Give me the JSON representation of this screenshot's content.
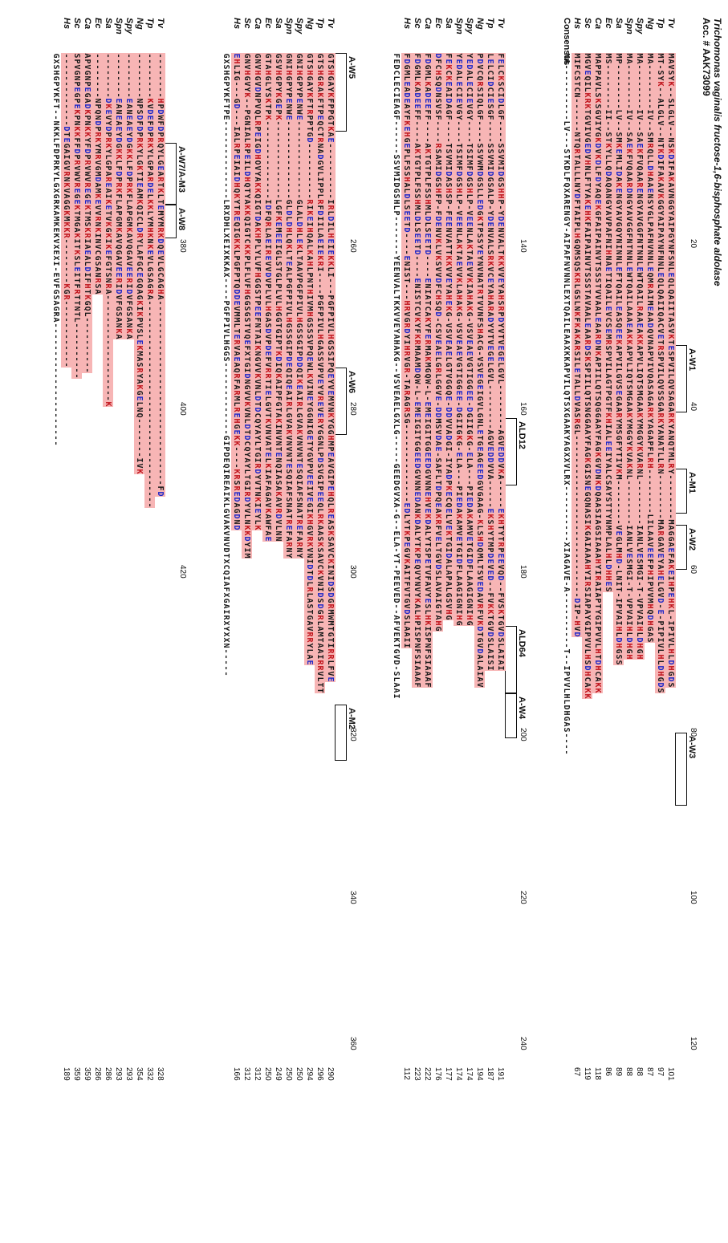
{
  "title": "Trichomonas vaginalis fructose-1,6-bisphosphate aldolase",
  "accession": "Acc. # AAK73099",
  "species": [
    "Tv",
    "Tp",
    "Ng",
    "Spy",
    "Spn",
    "Sa",
    "Ec",
    "Ca",
    "Sc",
    "Hs"
  ],
  "consensus_label": "Consensus",
  "blocks": [
    {
      "rows": [
        {
          "seq": "MAVSYK--S LGLV--NSK DIFAKAVNGG YAIPGYNFS NLEQLQAIIT ASVKTESPVI LQVSAGARKY ANQTMLRY--------MAGGAE FAKEIHPEHK L-IPIVLHLDHGDS",
          "end": "101"
        },
        {
          "seq": "MT-SYK--A LGLV--NTK DIFAKAVKGG YAIPAYNFN NLEQLQAIIQ ACVETRSPVI LQVSSGARKY ANATLLRN--------MARGAVE YAHELGVD-E-P IPIVLHLDHGDS",
          "end": "97"
        },
        {
          "seq": "MA------- -IV--SMR QLLDHAAENS YGLPAFNVN NLEQMRAIME AADQVNAPVI VQASAGARKY AGAPFLRH--------LILAAVE EFPHIPVVMHQDHGAS",
          "end": "87"
        },
        {
          "seq": "MA------- -IV--SAE KFVQAARENG YAVGGFNTN NLEWTQAILR AAEAKKAPVL IQTSMGAAKY MGGYKVARNL--------IANLVE SMGI-T-VPVAIHLDHGH",
          "end": "88"
        },
        {
          "seq": "MA------- -IV--SAE KFVQAARDNG YAVGGFNTN NLEWTQAILA AAEAKKAPVL IQTSMGAAKY MGGYKVAKNL--------IANLVE SMGI-T-VPVAIHLDHGH",
          "end": "88"
        },
        {
          "seq": "MP------- -LV--SMK EMLIDAKENG YAVGQYNIN NLEFTQAILE ASQEEKAPVI LGVSEGAARY MSGFYTIVKM--------VEGLMH D-LNIT-IPVAIHLDHGSS",
          "end": "89"
        },
        {
          "seq": "MS------- -II--STK YLLQDAQANG YAVPAFNIH NAETIQAILE VCSEMRSPVI LAGTPGTFKH IALEEIYALC SAYSTT YNMPLALHLDHHES",
          "end": "86"
        },
        {
          "seq": "MAPPAVLSK SGVIYGKDVK DLFDYAQEKG FAIPAINVT SSSTVVAALE AARDNKAPII LQTSQGGAAY FAGKGVDNKD QAASIAGSIA AAHYIRAIAP TYGIPVVLHTDHCAKK",
          "end": "118"
        },
        {
          "seq": "MGVEQILKRK TGVIVGEDVH NLFTYAKEHK FAIPAINVT SSSTAVAALE AARDSKSPII LQTSNGGAAY FAGKGISNEG QNASIKGAIA AAHYIRSIAP AYGIPVVLHSDHCAKK",
          "end": "119"
        },
        {
          "seq": "MIFCSTCN------NTQ RTALLLNYD FTAIPLHGQM SQSKRLGSLN KFKAKARSIL ETALLDVASRGL-----------------------------DIP-HV D",
          "end": "67"
        }
      ],
      "consensus": "MA-------- --LV---STK DLFQXARENG Y-AIPAFNVN NLEXTQAILE AAXKKAPVI LQTSXGAAKY AGXXVLRX----------XIAGAVE -A---------- T--IPVVLHLDHGAS----",
      "ticks": [
        {
          "at": 20,
          "label": "20"
        },
        {
          "at": 40,
          "label": "40"
        },
        {
          "at": 60,
          "label": "60"
        },
        {
          "at": 80,
          "label": "80"
        },
        {
          "at": 100,
          "label": "100"
        },
        {
          "at": 120,
          "label": "120"
        }
      ],
      "motifs": [
        {
          "label": "A-W1",
          "from": 52,
          "to": 64,
          "rows": [
            0,
            0
          ]
        },
        {
          "label": "A-M1",
          "from": 74,
          "to": 82,
          "rows": [
            0,
            0
          ]
        },
        {
          "label": "A-W2",
          "from": 84,
          "to": 92,
          "rows": [
            0,
            0
          ]
        },
        {
          "label": "A-W3",
          "from": 121,
          "to": 134,
          "rows": [
            0,
            0
          ]
        }
      ]
    },
    {
      "rows": [
        {
          "seq": "FELCKSCIDL GF----SSVMIDGSHH P-YDENVALTKKVV EYAHSRPDYV TVEGELGVL- -------AGVE DDVKA-----E KHTYTRPEEV QD--FVSKT GVDSLAIAI",
          "end": "191"
        },
        {
          "seq": "LELCIDCIES GF----SSVMIDGSAL P-YDENVALSRKVC EYAHARADYV TVEGELGVL- -------AGVE DDVVA-----E KSHYTMPDEV ED--FVKKT GVDSLAISI",
          "end": "187"
        },
        {
          "seq": "PDVCQRSIQL GF----SSVWMDGSLL EDGKTPSSYE YNVNATRTVV NFSHACG-VS VEGEIGVLGN LETGEAGEED GVGAAG-KLS HDQMLTSVED AVRFVKDTGV DALAIAV",
          "end": "194"
        },
        {
          "seq": "YEDALECIEV GY----TSIMFDGSHL P-VEENLAKTAEVV KIAHAKG-VS VEAEVGTIGG EE-DGIIGKG-ELA---PIEDA KAMVETGIDF LAAGIGNIHG",
          "end": "174"
        },
        {
          "seq": "YEDALECIEV GY----TSIMFDGSHL P-VEENLAKTAEVV KLAHAKG-VS VEAEVGTIGG EE-DGIIGKG-ELA---PIEDA KAMVETGIDF LAAGIGNIHG",
          "end": "174"
        },
        {
          "seq": "FEKCKEAIDA GF----TSVMIDASHS P-FEENVATTKKVV EYAHEKG-VS VEAELGTVGG QE-DDVVADGI-IYADPKECQE LVEKTGIDAL APALGSVHG",
          "end": "177"
        },
        {
          "seq": "DFCHSQDNSV SF----RSAMIDGSHF P-FDENVKLVKSVV DFCHSQD-CS VEAELGRLGG VE-DDMSVDAE-SAFLTDPQEA KRFVELTGVD SLAVAIGTAHG",
          "end": "176"
        },
        {
          "seq": "FDGMLKADEE FF----AKTGTPLF SSHMLDLSEE TD----ENIATCAKYF ERMAKMGQW-L-EMEIGITG GEEDGVNNEHVEK DALYTSPETV FAVYESLHKI SPNFSIAAAF",
          "end": "222"
        },
        {
          "seq": "FDGMLKADEE FF----AKTGTPLF SSHMLDLSEE TD----ENISTCVKYF KRMAAMDQW-L-EMEIGITG GEEDGVNNEDANK DALYTKPEQV YNVYKALHPI SPNFSIAAAF",
          "end": "223"
        },
        {
          "seq": "FDGMLEADEA YFKEHGEPLF SSHALDLSEE TD----ENIST---HRVGR DYIHRVGR-TARAGRSG -------------- EDLYTKPEGV KAITFVT GVDSLAAII",
          "end": "112"
        }
      ],
      "consensus": "FEDCLECIEA GF------SSVMIDGSHL P-------YE ENVALTKKVV EYAHAKG--V SVEAELGXLG -----GEE DGVXA-G--E LA-YT-PEEV ED--AFVEKT GVD-SLAAI",
      "ticks": [
        {
          "at": 140,
          "label": "140"
        },
        {
          "at": 160,
          "label": "160"
        },
        {
          "at": 180,
          "label": "180"
        },
        {
          "at": 200,
          "label": "200"
        },
        {
          "at": 220,
          "label": "220"
        },
        {
          "at": 240,
          "label": "240"
        }
      ],
      "motifs": [
        {
          "label": "ALD12",
          "from": 65,
          "to": 77,
          "rows": [
            0,
            0
          ]
        },
        {
          "label": "ALD64",
          "from": 102,
          "to": 114,
          "rows": [
            0,
            0
          ]
        },
        {
          "label": "A-W4",
          "from": 114,
          "to": 122,
          "rows": [
            0,
            0
          ]
        }
      ]
    },
    {
      "rows": [
        {
          "seq": "GTSHGAYKFP PGTKAE---- ------IRLD ILHEIEKKLI ---PGFPIV LHGSSIPQEY VEMVNKYGGH MPEAVGIPEH QLREASKSAV CKINIDSDGR MWMTGTIRRL FVE",
          "end": "290"
        },
        {
          "seq": "GTSHGRAKFT PEQCTRNADG VLIPPLRFDI ILAEIEKRI- ---PGFPIV LHGASSVPVE YVREVERYGG NLPDSVGIPE EQLRKAASKS AVCKVNIDSD GRLAMTAAIR RVLTT",
          "end": "296"
        },
        {
          "seq": "GTSHGAYKFT RPPTGD---- ------RIKE IHQALKAHLP NTHIVMHGSS SVPQEWLKVI NEYGGNIGET YGVPVEEIVE GIKHGVRKVN IDTDLRLASTGAVRR YLAE",
          "end": "294"
        },
        {
          "seq": "GNIHGPYPEN WE-------- ------GLAL DHLEKLTAAV PGFPIVLHGS SGIPDDQIKE AIRLGVAKVN VNTESQIAFS NATREFARNY",
          "end": "250"
        },
        {
          "seq": "GNIHGPYPEN WE-------- ------GLDL DHLQKLTEAL PGFPIVLHGS SGIPDEQIQE AIRLGVAKVN VNTESQIAFS NATREFARNY",
          "end": "250"
        },
        {
          "seq": "GSVHGPYKGE PK-------- ------LGFK EMEEIGLSTG LPLVLHGGTG IPTKDIQKAI PFGTAKINVN TENQIASAKA VRDVLNN",
          "end": "249"
        },
        {
          "seq": "GTAHGLYSKT PK-------- ------IDFQ RLAEIREVVD VPLVLHGASD VPDEFVRRTI ELGVTKVNVA TELKIAFAGA VKAWFAE",
          "end": "250"
        },
        {
          "seq": "GNVHGVDNPV QLRPEIGDHO VYAKKQIGTD AKHPLYLVFH GGSTPEEFNT AIKNGVVKVN LDTDCQYAYL TGIRDYVTNK IEYLK",
          "end": "312"
        },
        {
          "seq": "GNVHGVYK-- PGNIALRPEI LDHQTYAKKQ IGTCKKPLFL VFHGGSGSTV QEFXTGIDNG VVKVNLDTDC QYAYLTGIRD YVLNKKDYIM",
          "end": "312"
        },
        {
          "seq": "EHLIG---GD ---IALRPEI AIDHQKYTRE QIGKKL PGFPTQDDEV MMLTERVAEA QRFARMLREH GEKK----KR SREDAGDND",
          "end": "166"
        }
      ],
      "consensus": "GXSHGPYKFT PE-------- ------LRXD HLXEIXKKAX ----PGFPIV LHGGS----- --------GIPD EQIREAIKLG VAKVNVDTXC QIAFXGAIRX YXXN-----",
      "ticks": [
        {
          "at": 260,
          "label": "260"
        },
        {
          "at": 280,
          "label": "280"
        },
        {
          "at": 300,
          "label": "300"
        },
        {
          "at": 320,
          "label": "320"
        },
        {
          "at": 340,
          "label": "340"
        },
        {
          "at": 360,
          "label": "360"
        }
      ],
      "motifs": [
        {
          "label": "A-W5",
          "from": 0,
          "to": 14,
          "rows": [
            0,
            0
          ]
        },
        {
          "label": "A-W6",
          "from": 56,
          "to": 68,
          "rows": [
            0,
            0
          ]
        },
        {
          "label": "A-M2",
          "from": 116,
          "to": 126,
          "rows": [
            0,
            0
          ]
        }
      ]
    },
    {
      "rows": [
        {
          "seq": "------- -HPDWFDPR QYLGEARTKL TEMYMRKDQE VLGCAGHA------------ ---------------------FD",
          "end": "328"
        },
        {
          "seq": "------- -KVDEFDPR KYLGPARDEL KKLYMHKNKE VLGSAGRA------------ -------------------------",
          "end": "332"
        },
        {
          "seq": "------- -NPSDFDPR KYLGKTIEAM KQICLDRYLA FGCEGQAGKI KPVSLEKMAS RYAKGELNQ------- IVK",
          "end": "354"
        },
        {
          "seq": "------- -EANEAEYDG KKLFDPRKFL APGMKAVQGA VEERIDVFGS ANKA",
          "end": "293"
        },
        {
          "seq": "------- -EANEAEYDG KKLFDPRKFL APGMKAVQGA VEERIDVFGS ANKA",
          "end": "293"
        },
        {
          "seq": "------- -DKEVYDPRK YLGPAREAIK ETVKGKIKEF GTSNRA-------------------K",
          "end": "286"
        },
        {
          "seq": "------- -NPQNDPRKY MRVGMDAMKE VVRNKINVCG SANRSA",
          "end": "286"
        },
        {
          "seq": "APVGNPEGAD KPNKKYFDPR VWVREGEKTM SKRIAEALDI FHTKGQL----------",
          "end": "359"
        },
        {
          "seq": "SPVGNPEGPE KPNKKFFDPR VWVREGEKTM GAKITKSLEI TFRTTNTL----------",
          "end": "359"
        },
        {
          "seq": "------- ------DTE GAIGVRNKVA GGKMKKR--- -----KGR------------",
          "end": "189"
        }
      ],
      "consensus": "GXSHGPYKFT --NKKLFDPR KYLGXGRKAM KEKVXEXI-E VFGSAGRA--- ------------ -------",
      "ticks": [
        {
          "at": 380,
          "label": "380"
        },
        {
          "at": 400,
          "label": "400"
        },
        {
          "at": 420,
          "label": "420"
        }
      ],
      "motifs": [
        {
          "label": "A-W7/A-M3",
          "from": 16,
          "to": 27,
          "rows": [
            0,
            0
          ]
        },
        {
          "label": "A-W8",
          "from": 27,
          "to": 33,
          "rows": [
            0,
            0
          ]
        }
      ]
    }
  ],
  "colors": {
    "highlight": "#f7b5b5",
    "red_residue": "#c0121a",
    "blue_residue": "#1c26c8",
    "text": "#111111"
  }
}
